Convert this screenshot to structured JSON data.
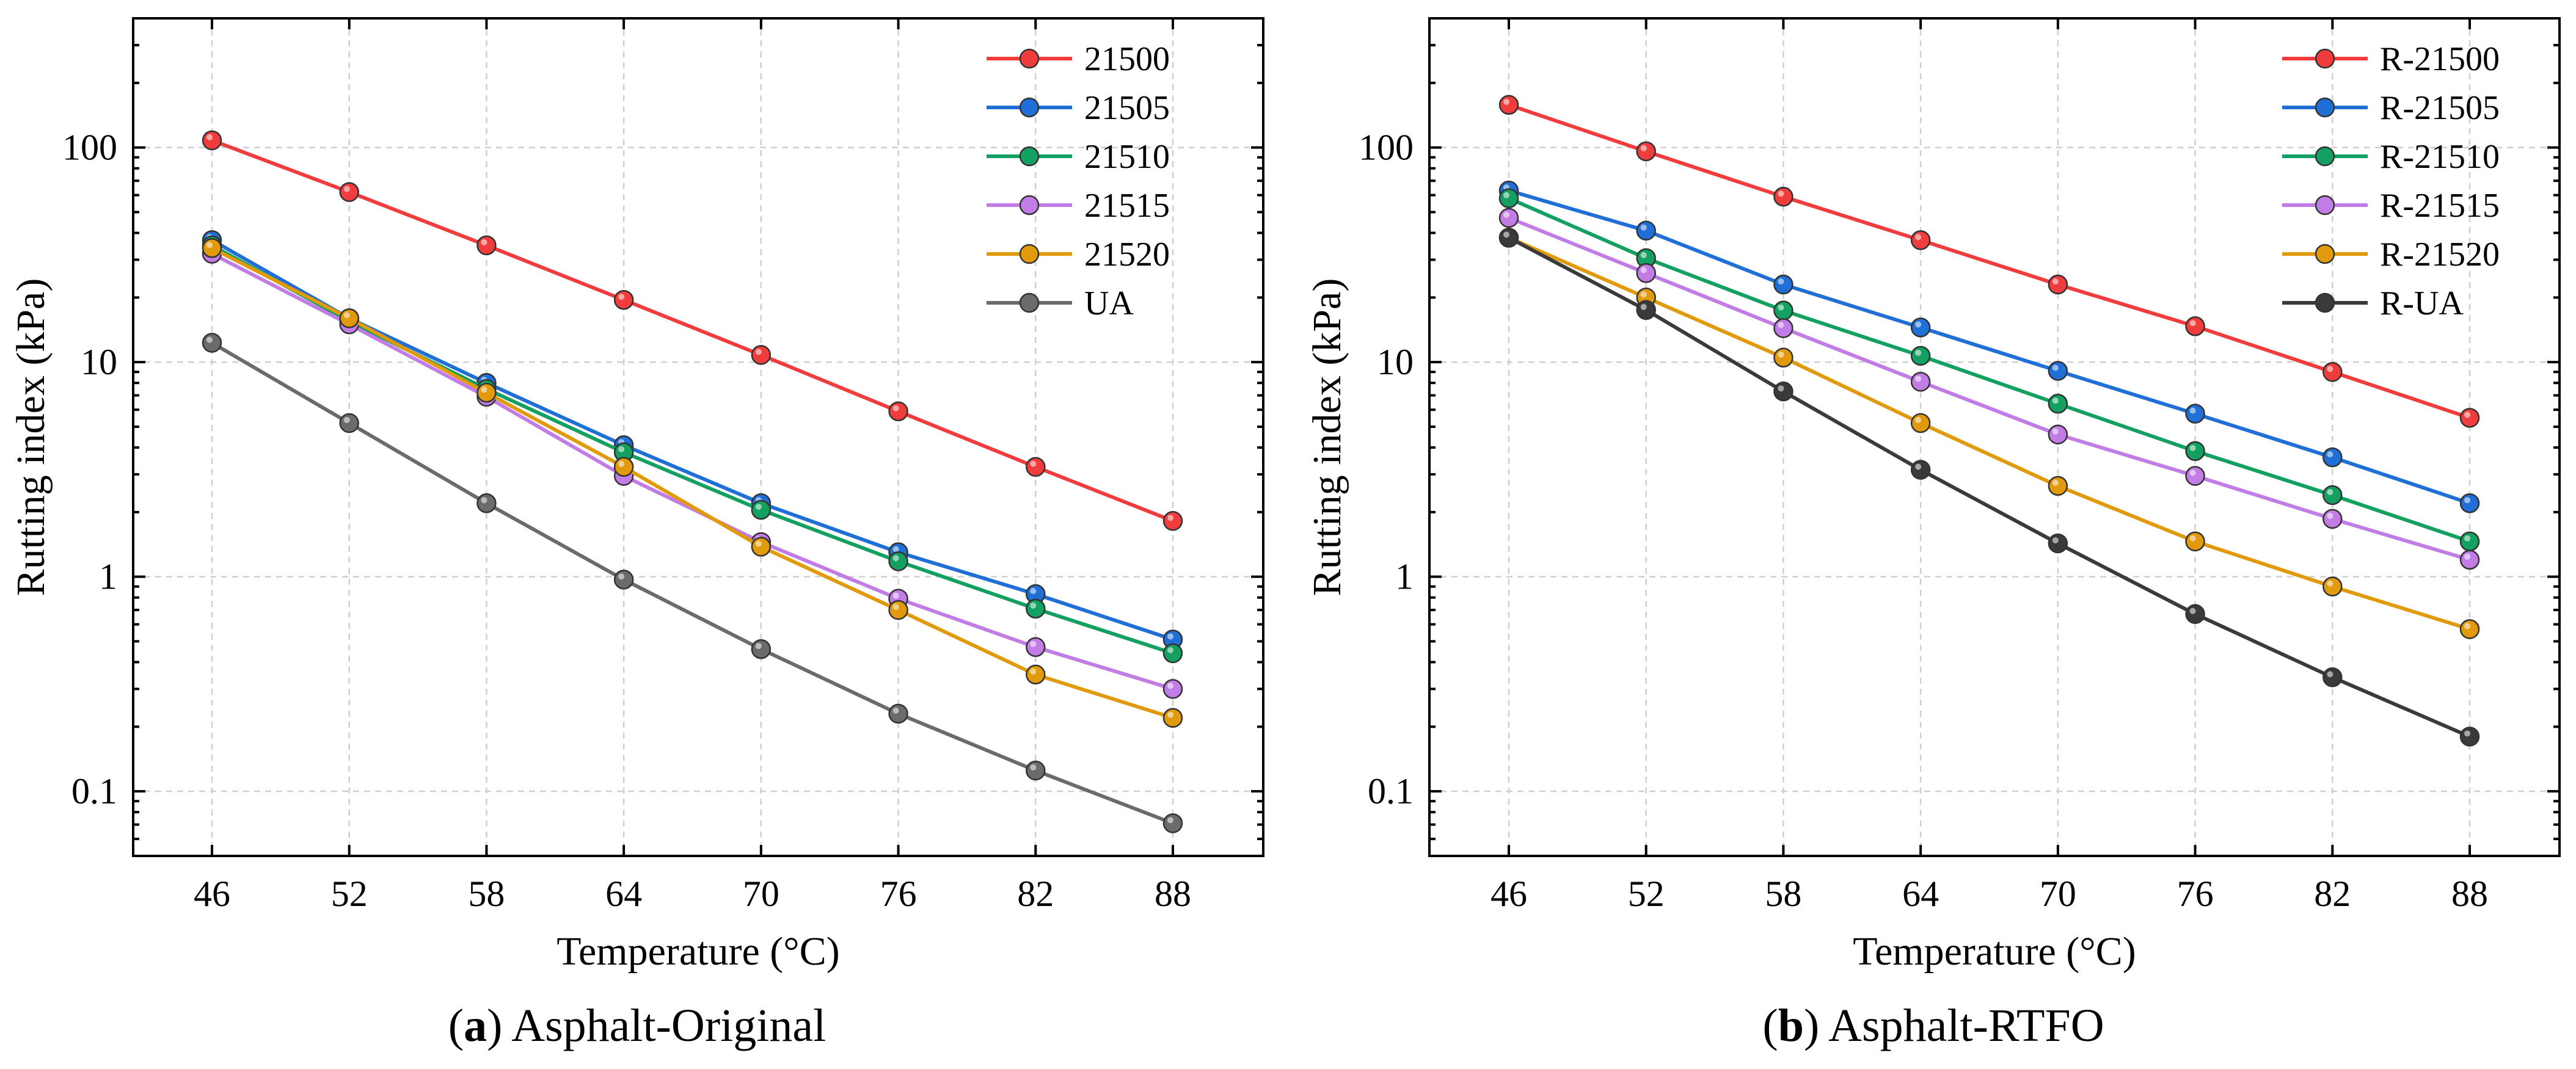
{
  "chart_data": [
    {
      "type": "line",
      "panel": "a",
      "caption_letter": "a",
      "caption_title": "Asphalt-Original",
      "xlabel": "Temperature (°C)",
      "ylabel": "Rutting index (kPa)",
      "yscale": "log",
      "ylim": [
        0.05,
        400
      ],
      "x": [
        46,
        52,
        58,
        64,
        70,
        76,
        82,
        88
      ],
      "x_ticks": [
        "46",
        "52",
        "58",
        "64",
        "70",
        "76",
        "82",
        "88"
      ],
      "y_ticks": [
        0.1,
        1,
        10,
        100
      ],
      "y_tick_labels": [
        "0.1",
        "1",
        "10",
        "100"
      ],
      "grid": true,
      "legend_position": "top-right",
      "series": [
        {
          "name": "21500",
          "color": "#f03c3c",
          "values": [
            108,
            62,
            35,
            19.5,
            10.8,
            5.9,
            3.25,
            1.82
          ]
        },
        {
          "name": "21505",
          "color": "#1f6fd6",
          "values": [
            37,
            16,
            8.0,
            4.1,
            2.2,
            1.3,
            0.83,
            0.51
          ]
        },
        {
          "name": "21510",
          "color": "#14a060",
          "values": [
            35,
            15.5,
            7.5,
            3.8,
            2.05,
            1.18,
            0.71,
            0.44
          ]
        },
        {
          "name": "21515",
          "color": "#c27ce6",
          "values": [
            32,
            15,
            6.9,
            2.95,
            1.45,
            0.79,
            0.47,
            0.3
          ]
        },
        {
          "name": "21520",
          "color": "#e09a0c",
          "values": [
            34,
            16,
            7.2,
            3.25,
            1.38,
            0.7,
            0.35,
            0.22
          ]
        },
        {
          "name": "UA",
          "color": "#6b6b6b",
          "values": [
            12.3,
            5.2,
            2.2,
            0.97,
            0.46,
            0.23,
            0.125,
            0.071
          ]
        }
      ]
    },
    {
      "type": "line",
      "panel": "b",
      "caption_letter": "b",
      "caption_title": "Asphalt-RTFO",
      "xlabel": "Temperature (°C)",
      "ylabel": "Rutting index (kPa)",
      "yscale": "log",
      "ylim": [
        0.05,
        400
      ],
      "x": [
        46,
        52,
        58,
        64,
        70,
        76,
        82,
        88
      ],
      "x_ticks": [
        "46",
        "52",
        "58",
        "64",
        "70",
        "76",
        "82",
        "88"
      ],
      "y_ticks": [
        0.1,
        1,
        10,
        100
      ],
      "y_tick_labels": [
        "0.1",
        "1",
        "10",
        "100"
      ],
      "grid": true,
      "legend_position": "top-right",
      "series": [
        {
          "name": "R-21500",
          "color": "#f03c3c",
          "values": [
            158,
            96,
            59,
            37,
            23,
            14.7,
            9.0,
            5.5
          ]
        },
        {
          "name": "R-21505",
          "color": "#1f6fd6",
          "values": [
            63,
            41,
            23,
            14.5,
            9.1,
            5.75,
            3.6,
            2.2
          ]
        },
        {
          "name": "R-21510",
          "color": "#14a060",
          "values": [
            58,
            30.5,
            17.4,
            10.7,
            6.4,
            3.85,
            2.4,
            1.46
          ]
        },
        {
          "name": "R-21515",
          "color": "#c27ce6",
          "values": [
            47,
            26,
            14.4,
            8.1,
            4.6,
            2.95,
            1.86,
            1.2
          ]
        },
        {
          "name": "R-21520",
          "color": "#e09a0c",
          "values": [
            38,
            20,
            10.5,
            5.2,
            2.65,
            1.46,
            0.9,
            0.57
          ]
        },
        {
          "name": "R-UA",
          "color": "#3a3a3a",
          "values": [
            38,
            17.5,
            7.3,
            3.15,
            1.43,
            0.67,
            0.34,
            0.18
          ]
        }
      ]
    }
  ]
}
